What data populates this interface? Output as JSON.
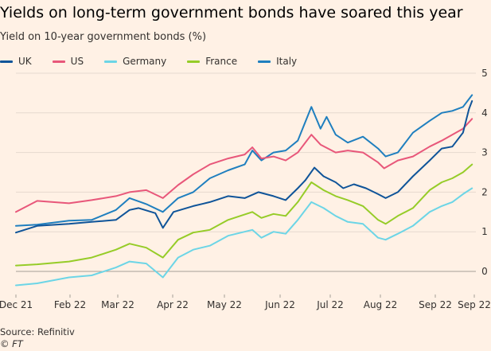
{
  "chart_data": {
    "type": "line",
    "title": "Yields on long-term government bonds have soared this year",
    "subtitle": "Yield on 10-year government bonds (%)",
    "x_range": [
      "2021-12-01",
      "2022-09-30"
    ],
    "x_tick_labels": [
      "Dec 21",
      "Feb 22",
      "Mar 22",
      "Apr 22",
      "May 22",
      "Jun 22",
      "Jul 22",
      "Aug 22",
      "Sep 22",
      "Sep 22"
    ],
    "y_ticks": [
      0,
      1,
      2,
      3,
      4,
      5
    ],
    "ylim": [
      -0.3,
      5
    ],
    "y_axis_position": "right",
    "grid": "horizontal",
    "legend_position": "top-left",
    "series": [
      {
        "name": "UK",
        "color": "#0f5499",
        "points": [
          [
            "2021-12-01",
            0.98
          ],
          [
            "2021-12-15",
            1.15
          ],
          [
            "2022-01-05",
            1.2
          ],
          [
            "2022-01-20",
            1.25
          ],
          [
            "2022-02-05",
            1.3
          ],
          [
            "2022-02-14",
            1.55
          ],
          [
            "2022-02-20",
            1.6
          ],
          [
            "2022-03-03",
            1.47
          ],
          [
            "2022-03-08",
            1.1
          ],
          [
            "2022-03-15",
            1.5
          ],
          [
            "2022-03-28",
            1.65
          ],
          [
            "2022-04-08",
            1.75
          ],
          [
            "2022-04-20",
            1.9
          ],
          [
            "2022-05-01",
            1.85
          ],
          [
            "2022-05-10",
            2.0
          ],
          [
            "2022-05-20",
            1.9
          ],
          [
            "2022-05-28",
            1.8
          ],
          [
            "2022-06-05",
            2.1
          ],
          [
            "2022-06-10",
            2.3
          ],
          [
            "2022-06-16",
            2.62
          ],
          [
            "2022-06-22",
            2.4
          ],
          [
            "2022-06-30",
            2.25
          ],
          [
            "2022-07-05",
            2.1
          ],
          [
            "2022-07-12",
            2.2
          ],
          [
            "2022-07-20",
            2.1
          ],
          [
            "2022-07-28",
            1.95
          ],
          [
            "2022-08-02",
            1.85
          ],
          [
            "2022-08-10",
            2.0
          ],
          [
            "2022-08-20",
            2.4
          ],
          [
            "2022-08-31",
            2.8
          ],
          [
            "2022-09-08",
            3.1
          ],
          [
            "2022-09-15",
            3.15
          ],
          [
            "2022-09-22",
            3.5
          ],
          [
            "2022-09-26",
            4.1
          ],
          [
            "2022-09-28",
            4.3
          ]
        ]
      },
      {
        "name": "US",
        "color": "#e8577a",
        "points": [
          [
            "2021-12-01",
            1.5
          ],
          [
            "2021-12-15",
            1.78
          ],
          [
            "2022-01-05",
            1.72
          ],
          [
            "2022-01-20",
            1.8
          ],
          [
            "2022-02-05",
            1.9
          ],
          [
            "2022-02-14",
            2.0
          ],
          [
            "2022-02-25",
            2.05
          ],
          [
            "2022-03-08",
            1.85
          ],
          [
            "2022-03-18",
            2.18
          ],
          [
            "2022-03-28",
            2.45
          ],
          [
            "2022-04-08",
            2.7
          ],
          [
            "2022-04-20",
            2.85
          ],
          [
            "2022-05-01",
            2.95
          ],
          [
            "2022-05-06",
            3.13
          ],
          [
            "2022-05-12",
            2.85
          ],
          [
            "2022-05-20",
            2.9
          ],
          [
            "2022-05-28",
            2.8
          ],
          [
            "2022-06-05",
            3.0
          ],
          [
            "2022-06-14",
            3.45
          ],
          [
            "2022-06-20",
            3.2
          ],
          [
            "2022-06-30",
            3.0
          ],
          [
            "2022-07-08",
            3.05
          ],
          [
            "2022-07-18",
            3.0
          ],
          [
            "2022-07-28",
            2.75
          ],
          [
            "2022-08-01",
            2.6
          ],
          [
            "2022-08-10",
            2.8
          ],
          [
            "2022-08-20",
            2.9
          ],
          [
            "2022-08-31",
            3.15
          ],
          [
            "2022-09-08",
            3.3
          ],
          [
            "2022-09-15",
            3.45
          ],
          [
            "2022-09-22",
            3.6
          ],
          [
            "2022-09-28",
            3.85
          ]
        ]
      },
      {
        "name": "Germany",
        "color": "#6cd5e6",
        "points": [
          [
            "2021-12-01",
            -0.35
          ],
          [
            "2021-12-15",
            -0.3
          ],
          [
            "2022-01-05",
            -0.15
          ],
          [
            "2022-01-20",
            -0.1
          ],
          [
            "2022-02-05",
            0.1
          ],
          [
            "2022-02-14",
            0.25
          ],
          [
            "2022-02-25",
            0.2
          ],
          [
            "2022-03-08",
            -0.15
          ],
          [
            "2022-03-18",
            0.35
          ],
          [
            "2022-03-28",
            0.55
          ],
          [
            "2022-04-08",
            0.65
          ],
          [
            "2022-04-20",
            0.9
          ],
          [
            "2022-05-06",
            1.05
          ],
          [
            "2022-05-12",
            0.85
          ],
          [
            "2022-05-20",
            1.0
          ],
          [
            "2022-05-28",
            0.95
          ],
          [
            "2022-06-05",
            1.3
          ],
          [
            "2022-06-14",
            1.75
          ],
          [
            "2022-06-22",
            1.6
          ],
          [
            "2022-06-30",
            1.4
          ],
          [
            "2022-07-08",
            1.25
          ],
          [
            "2022-07-18",
            1.2
          ],
          [
            "2022-07-28",
            0.85
          ],
          [
            "2022-08-02",
            0.8
          ],
          [
            "2022-08-10",
            0.95
          ],
          [
            "2022-08-20",
            1.15
          ],
          [
            "2022-08-31",
            1.5
          ],
          [
            "2022-09-08",
            1.65
          ],
          [
            "2022-09-15",
            1.75
          ],
          [
            "2022-09-22",
            1.95
          ],
          [
            "2022-09-28",
            2.1
          ]
        ]
      },
      {
        "name": "France",
        "color": "#96cc28",
        "points": [
          [
            "2021-12-01",
            0.15
          ],
          [
            "2021-12-15",
            0.18
          ],
          [
            "2022-01-05",
            0.25
          ],
          [
            "2022-01-20",
            0.35
          ],
          [
            "2022-02-05",
            0.55
          ],
          [
            "2022-02-14",
            0.7
          ],
          [
            "2022-02-25",
            0.6
          ],
          [
            "2022-03-08",
            0.35
          ],
          [
            "2022-03-18",
            0.8
          ],
          [
            "2022-03-28",
            0.98
          ],
          [
            "2022-04-08",
            1.05
          ],
          [
            "2022-04-20",
            1.3
          ],
          [
            "2022-05-06",
            1.5
          ],
          [
            "2022-05-12",
            1.35
          ],
          [
            "2022-05-20",
            1.45
          ],
          [
            "2022-05-28",
            1.4
          ],
          [
            "2022-06-05",
            1.75
          ],
          [
            "2022-06-14",
            2.25
          ],
          [
            "2022-06-22",
            2.05
          ],
          [
            "2022-06-30",
            1.9
          ],
          [
            "2022-07-08",
            1.8
          ],
          [
            "2022-07-18",
            1.65
          ],
          [
            "2022-07-28",
            1.3
          ],
          [
            "2022-08-02",
            1.2
          ],
          [
            "2022-08-10",
            1.4
          ],
          [
            "2022-08-20",
            1.6
          ],
          [
            "2022-08-31",
            2.05
          ],
          [
            "2022-09-08",
            2.25
          ],
          [
            "2022-09-15",
            2.35
          ],
          [
            "2022-09-22",
            2.5
          ],
          [
            "2022-09-28",
            2.7
          ]
        ]
      },
      {
        "name": "Italy",
        "color": "#1f7fbf",
        "points": [
          [
            "2021-12-01",
            1.15
          ],
          [
            "2021-12-15",
            1.18
          ],
          [
            "2022-01-05",
            1.28
          ],
          [
            "2022-01-20",
            1.3
          ],
          [
            "2022-02-05",
            1.55
          ],
          [
            "2022-02-14",
            1.85
          ],
          [
            "2022-02-25",
            1.7
          ],
          [
            "2022-03-08",
            1.5
          ],
          [
            "2022-03-18",
            1.85
          ],
          [
            "2022-03-28",
            2.0
          ],
          [
            "2022-04-08",
            2.35
          ],
          [
            "2022-04-20",
            2.55
          ],
          [
            "2022-05-01",
            2.7
          ],
          [
            "2022-05-06",
            3.05
          ],
          [
            "2022-05-12",
            2.8
          ],
          [
            "2022-05-20",
            3.0
          ],
          [
            "2022-05-28",
            3.05
          ],
          [
            "2022-06-05",
            3.3
          ],
          [
            "2022-06-14",
            4.15
          ],
          [
            "2022-06-20",
            3.6
          ],
          [
            "2022-06-24",
            3.9
          ],
          [
            "2022-06-30",
            3.45
          ],
          [
            "2022-07-08",
            3.25
          ],
          [
            "2022-07-18",
            3.4
          ],
          [
            "2022-07-28",
            3.1
          ],
          [
            "2022-08-02",
            2.9
          ],
          [
            "2022-08-10",
            3.0
          ],
          [
            "2022-08-20",
            3.5
          ],
          [
            "2022-08-31",
            3.8
          ],
          [
            "2022-09-08",
            4.0
          ],
          [
            "2022-09-15",
            4.05
          ],
          [
            "2022-09-22",
            4.15
          ],
          [
            "2022-09-28",
            4.45
          ]
        ]
      }
    ]
  },
  "source": "Source: Refinitiv",
  "credit": "© FT"
}
